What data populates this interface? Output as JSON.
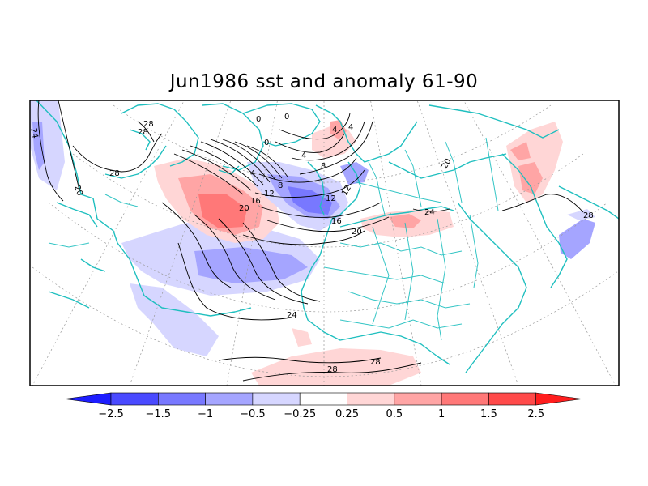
{
  "map": {
    "title": "Jun1986 sst and anomaly 61-90",
    "contour_labels": [
      "24",
      "28",
      "28",
      "28",
      "20",
      "0",
      "0",
      "0",
      "4",
      "4",
      "12",
      "4",
      "8",
      "4",
      "8",
      "12",
      "16",
      "20",
      "12",
      "16",
      "20",
      "24",
      "20",
      "28",
      "24",
      "28",
      "28"
    ]
  },
  "colorbar": {
    "ticks": [
      "−2.5",
      "−1.5",
      "−1",
      "−0.5",
      "−0.25",
      "0.25",
      "0.5",
      "1",
      "1.5",
      "2.5"
    ],
    "colors": [
      "#1e1eff",
      "#4a4aff",
      "#7878ff",
      "#a5a5ff",
      "#d6d6ff",
      "#ffffff",
      "#ffd6d6",
      "#ffa5a5",
      "#ff7878",
      "#ff4a4a",
      "#ff1e1e"
    ]
  }
}
